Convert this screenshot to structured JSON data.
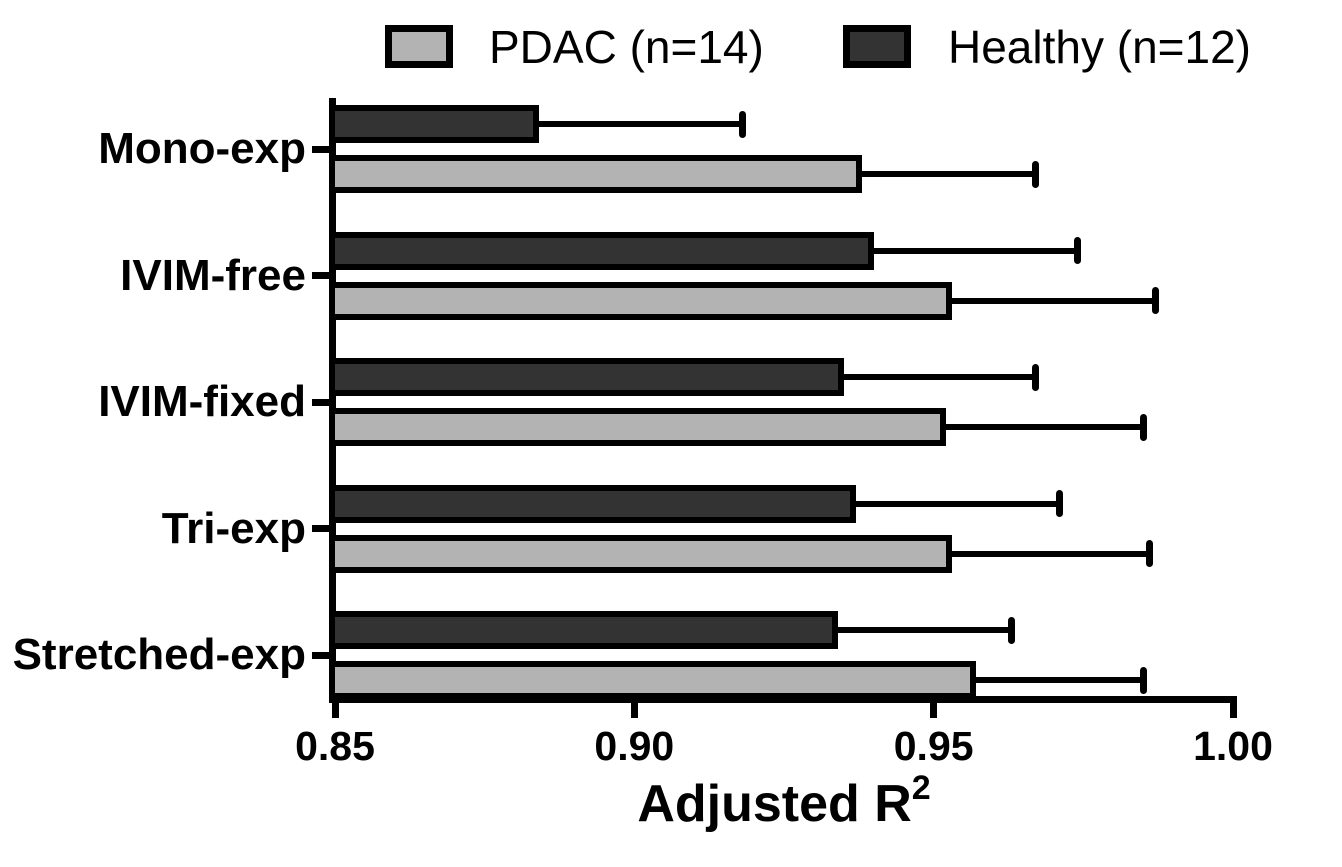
{
  "chart_data": {
    "type": "bar",
    "orientation": "horizontal",
    "xlabel": "Adjusted R²",
    "xlabel_base": "Adjusted R",
    "xlabel_sup": "2",
    "xlim": [
      0.85,
      1.0
    ],
    "x_ticks": [
      "0.85",
      "0.90",
      "0.95",
      "1.00"
    ],
    "grid": false,
    "legend_position": "top",
    "error_bars": "right-only-sd",
    "categories": [
      "Mono-exp",
      "IVIM-free",
      "IVIM-fixed",
      "Tri-exp",
      "Stretched-exp"
    ],
    "series": [
      {
        "name": "PDAC (n=14)",
        "color": "#b3b3b3",
        "values": [
          0.938,
          0.953,
          0.952,
          0.953,
          0.957
        ],
        "errors": [
          0.029,
          0.034,
          0.033,
          0.033,
          0.028
        ]
      },
      {
        "name": "Healthy (n=12)",
        "color": "#333333",
        "values": [
          0.884,
          0.94,
          0.935,
          0.937,
          0.934
        ],
        "errors": [
          0.034,
          0.034,
          0.032,
          0.034,
          0.029
        ]
      }
    ],
    "colors": {
      "axis": "#000000",
      "text": "#000000",
      "background": "#ffffff"
    }
  }
}
